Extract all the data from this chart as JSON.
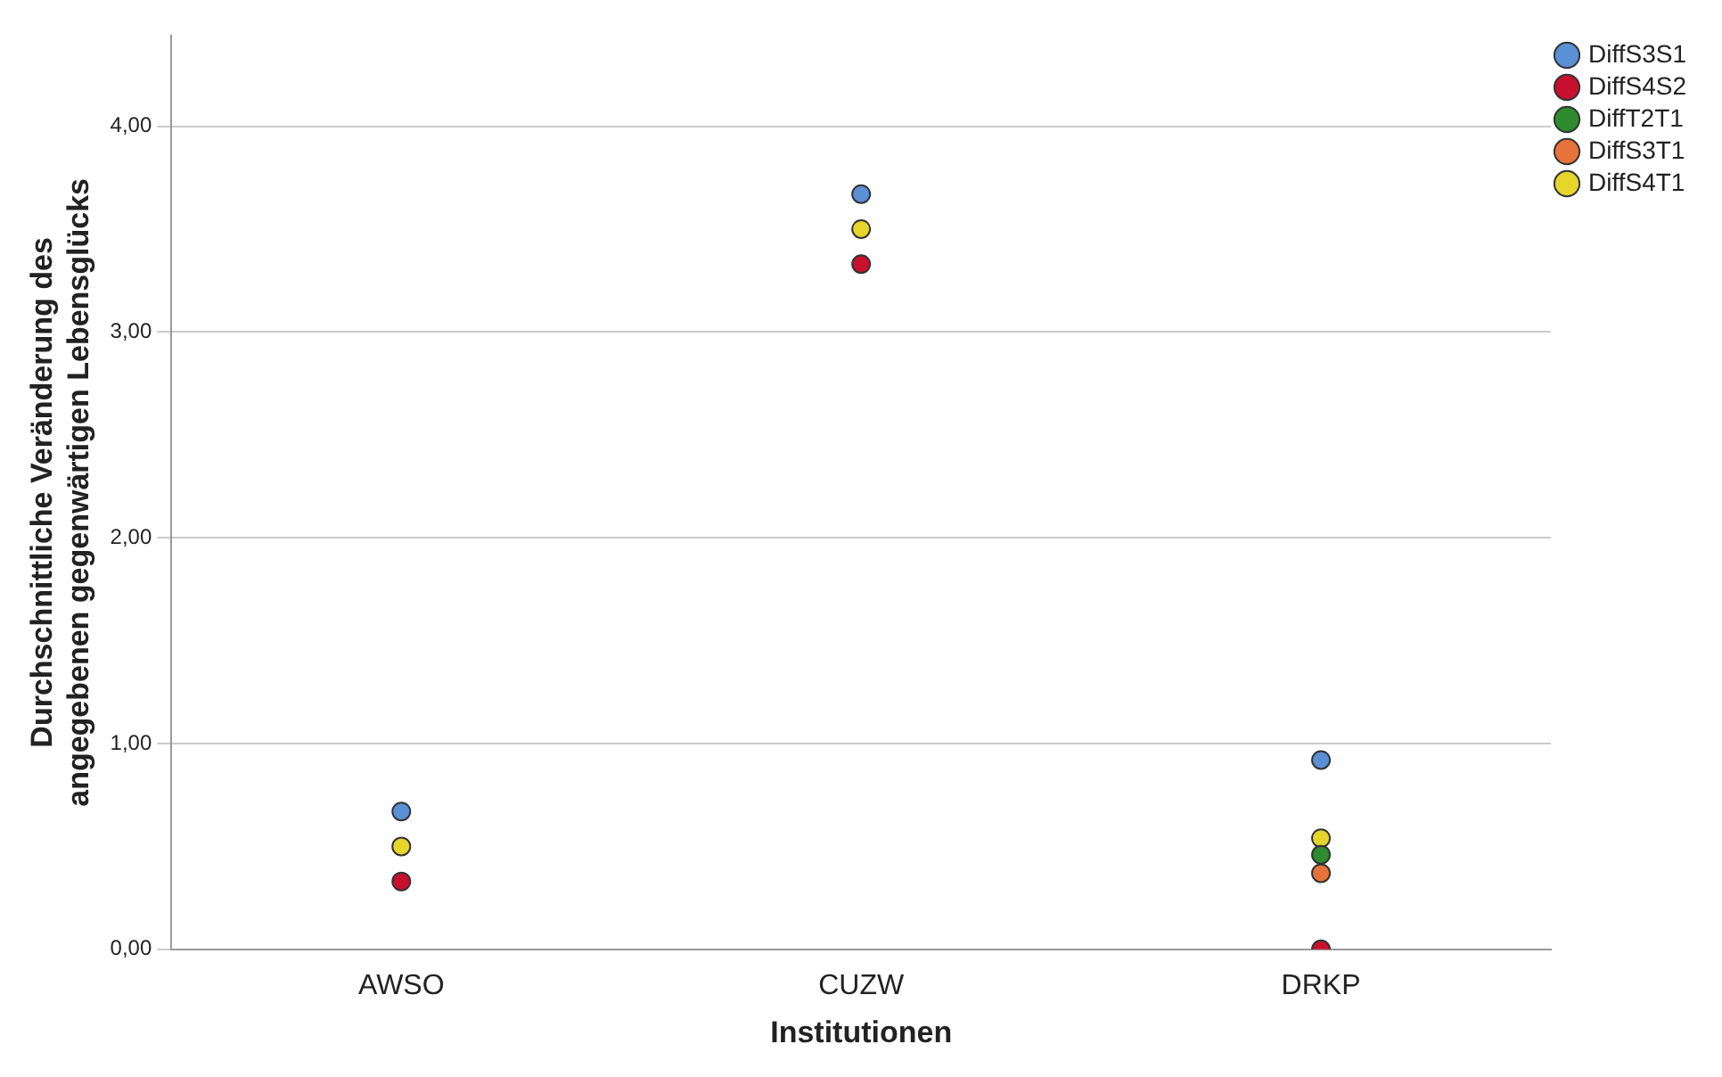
{
  "chart_data": {
    "type": "scatter",
    "xlabel": "Institutionen",
    "ylabel": "Durchschnittliche Veränderung des angegebenen gegenwärtigen Lebensglücks",
    "categories": [
      "AWSO",
      "CUZW",
      "DRKP"
    ],
    "series": [
      {
        "name": "DiffS3S1",
        "color": "#5b8fd6",
        "values": [
          0.67,
          3.67,
          0.92
        ]
      },
      {
        "name": "DiffS4S2",
        "color": "#c8102e",
        "values": [
          0.33,
          3.33,
          0
        ]
      },
      {
        "name": "DiffT2T1",
        "color": "#2e8b2e",
        "values": [
          null,
          null,
          0.46
        ]
      },
      {
        "name": "DiffS3T1",
        "color": "#e8733a",
        "values": [
          null,
          null,
          0.37
        ]
      },
      {
        "name": "DiffS4T1",
        "color": "#e6d52a",
        "values": [
          0.5,
          3.5,
          0.54
        ]
      }
    ],
    "ylim": [
      0,
      4.44
    ],
    "yticks": [
      {
        "value": 0,
        "label": "0,00"
      },
      {
        "value": 1,
        "label": "1,00"
      },
      {
        "value": 2,
        "label": "2,00"
      },
      {
        "value": 3,
        "label": "3,00"
      },
      {
        "value": 4,
        "label": "4,00"
      }
    ],
    "grid": "y",
    "legend": "top right",
    "marker": "circle"
  }
}
